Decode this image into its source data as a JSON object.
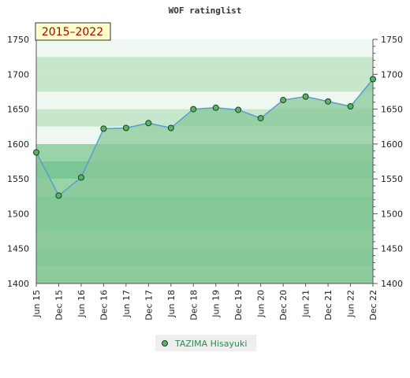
{
  "chart_data": {
    "type": "area",
    "title": "WOF ratinglist",
    "period_label": "2015–2022",
    "categories": [
      "Jun 15",
      "Dec 15",
      "Jun 16",
      "Dec 16",
      "Jun 17",
      "Dec 17",
      "Jun 18",
      "Dec 18",
      "Jun 19",
      "Dec 19",
      "Jun 20",
      "Dec 20",
      "Jun 21",
      "Dec 21",
      "Jun 22",
      "Dec 22"
    ],
    "series": [
      {
        "name": "TAZIMA Hisayuki",
        "values": [
          1588,
          1526,
          1552,
          1622,
          1623,
          1630,
          1623,
          1650,
          1652,
          1649,
          1637,
          1663,
          1668,
          1661,
          1654,
          1693
        ]
      }
    ],
    "ylim": [
      1400,
      1750
    ],
    "yticks": [
      1400,
      1450,
      1500,
      1550,
      1600,
      1650,
      1700,
      1750
    ],
    "grid": true,
    "legend": "bottom-center",
    "colors": {
      "line": "#5b9bd5",
      "area": "#88c898",
      "marker_fill": "#56b46e",
      "marker_stroke": "#1f3d1f",
      "band_dark": "#7cc696",
      "band_mid": "#9ad3a8",
      "band_light": "#c7e7cd",
      "band_lightest": "#eef8f0",
      "period_box_bg": "#ffffcc",
      "legend_bg": "#eeeeee"
    }
  }
}
